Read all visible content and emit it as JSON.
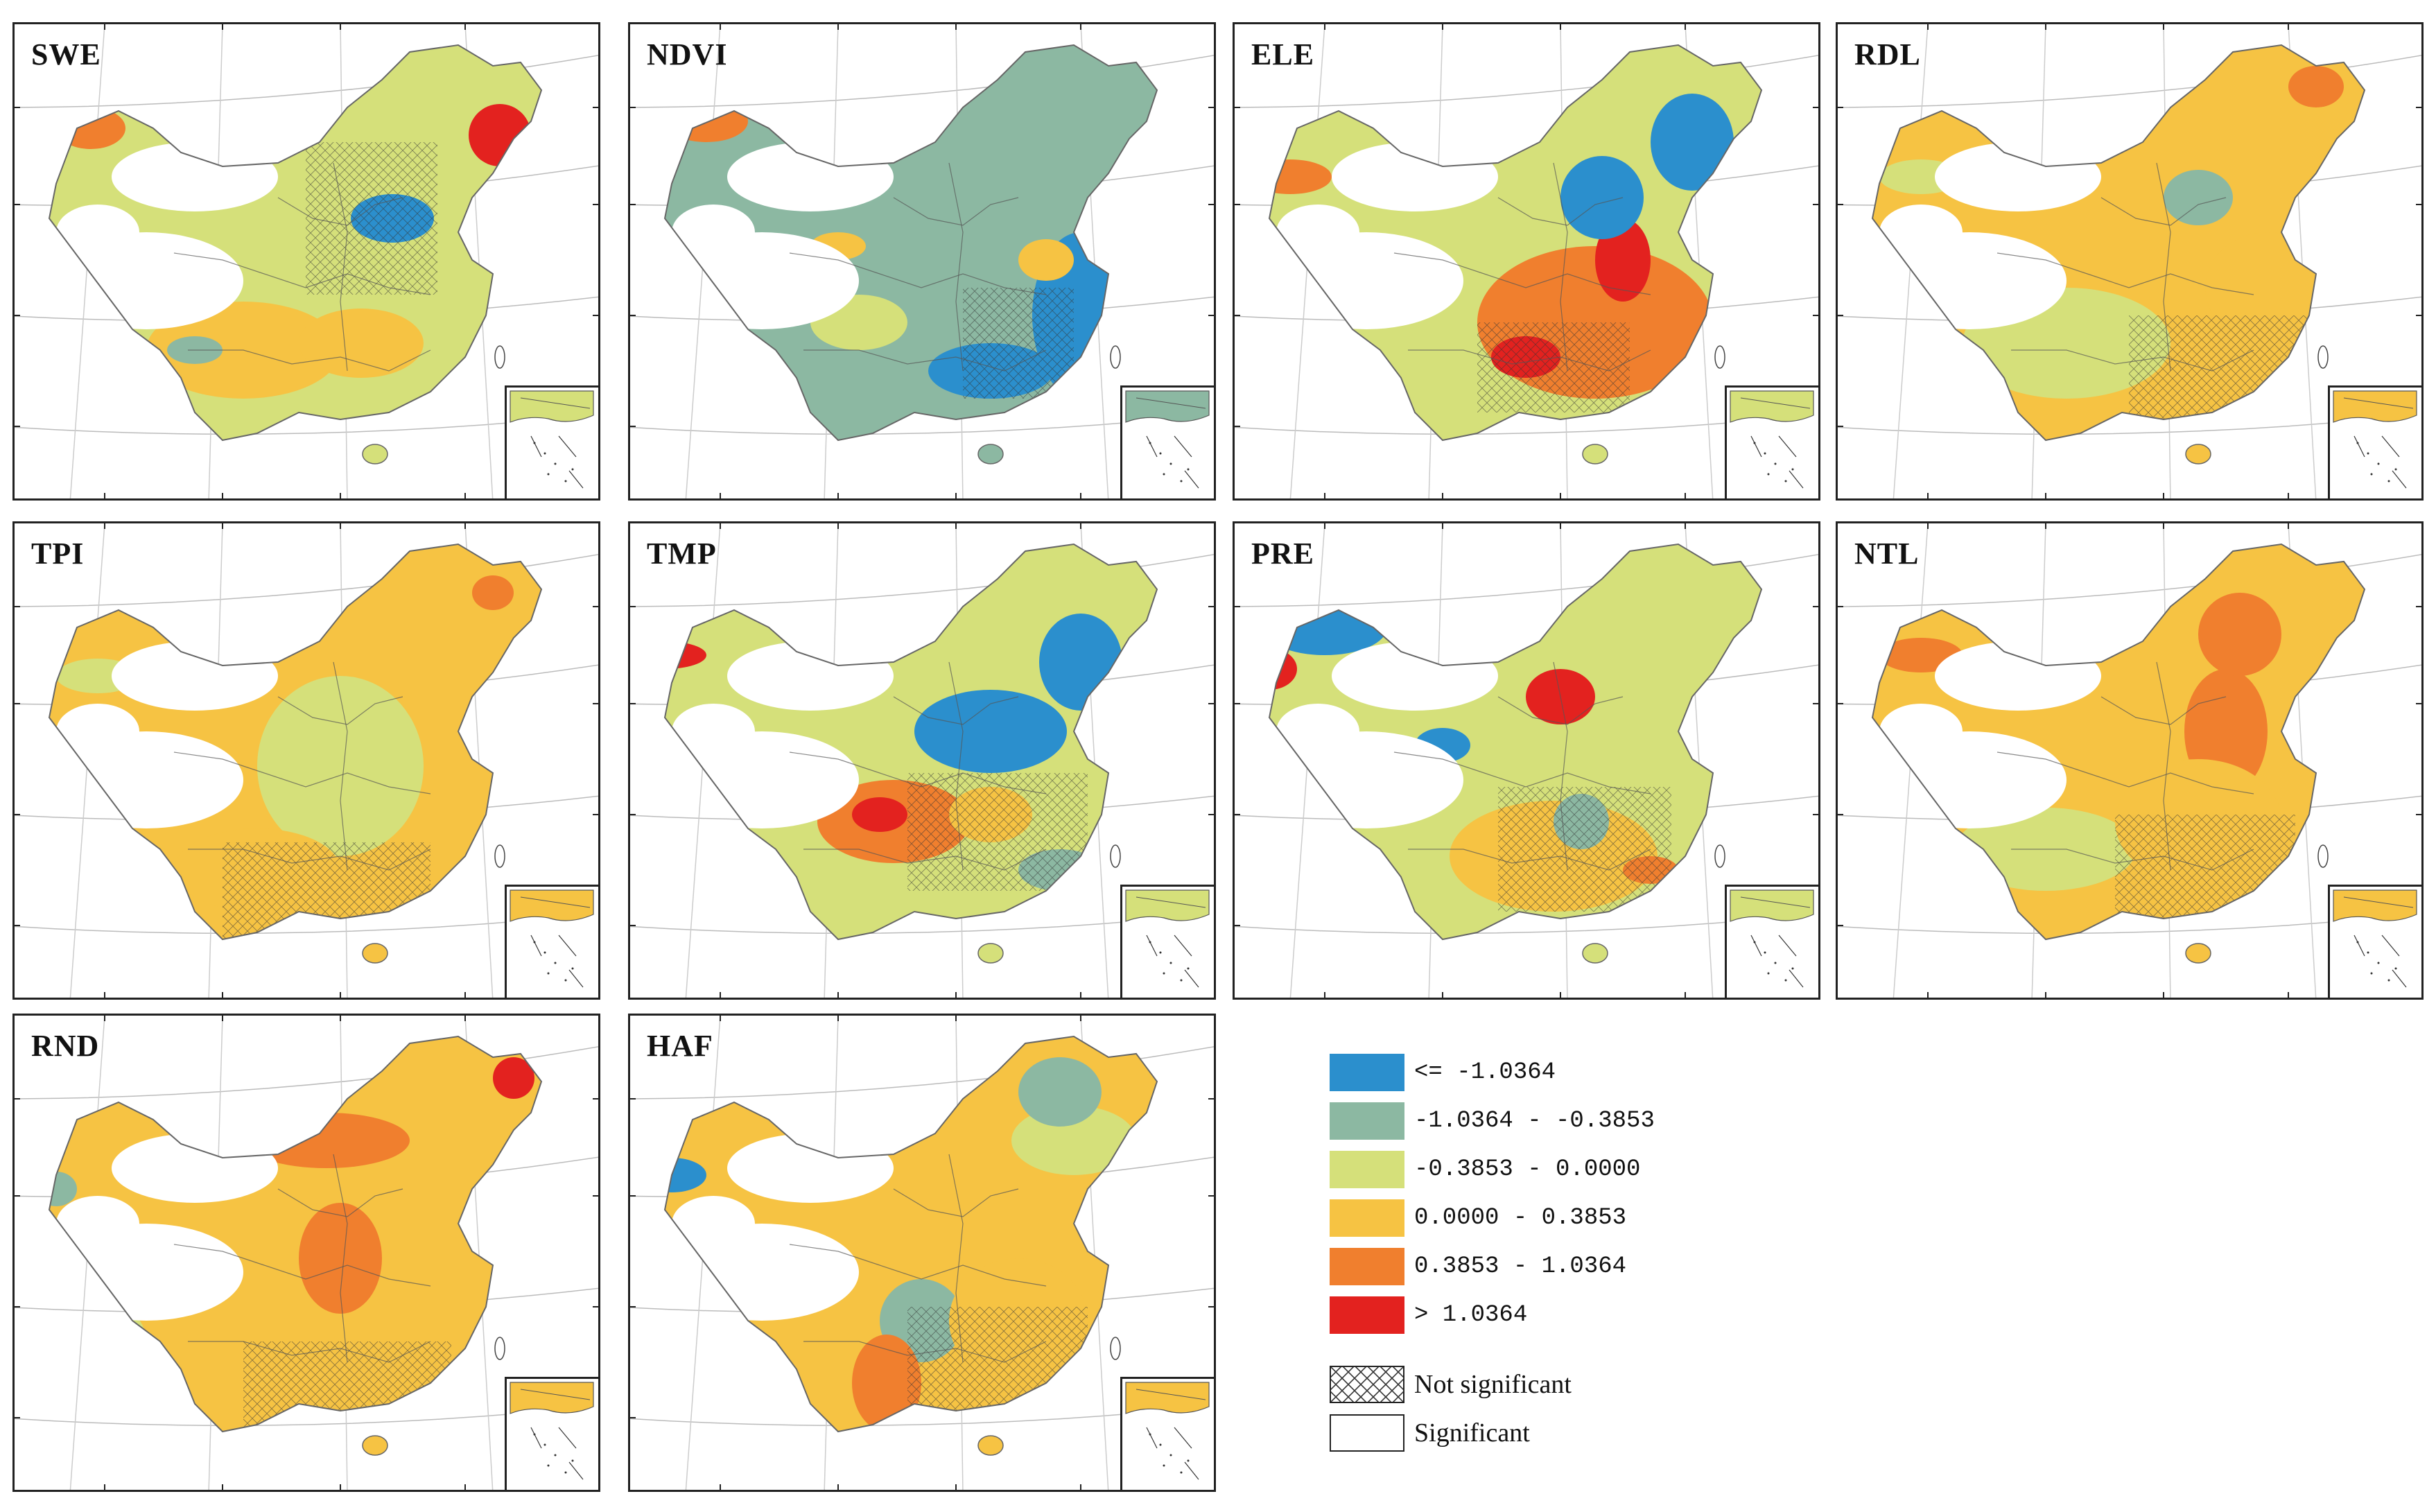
{
  "panels": [
    {
      "label": "SWE"
    },
    {
      "label": "NDVI"
    },
    {
      "label": "ELE"
    },
    {
      "label": "RDL"
    },
    {
      "label": "TPI"
    },
    {
      "label": "TMP"
    },
    {
      "label": "PRE"
    },
    {
      "label": "NTL"
    },
    {
      "label": "RND"
    },
    {
      "label": "HAF"
    }
  ],
  "legend": {
    "classes": [
      {
        "label": "<= -1.0364",
        "color": "#2b8fcd"
      },
      {
        "label": "-1.0364 - -0.3853",
        "color": "#8cb8a2"
      },
      {
        "label": "-0.3853 - 0.0000",
        "color": "#d5e07a"
      },
      {
        "label": "0.0000 - 0.3853",
        "color": "#f6c343"
      },
      {
        "label": "0.3853 - 1.0364",
        "color": "#f07f2e"
      },
      {
        "label": "> 1.0364",
        "color": "#e3221f"
      }
    ],
    "not_significant": "Not significant",
    "significant": "Significant"
  }
}
